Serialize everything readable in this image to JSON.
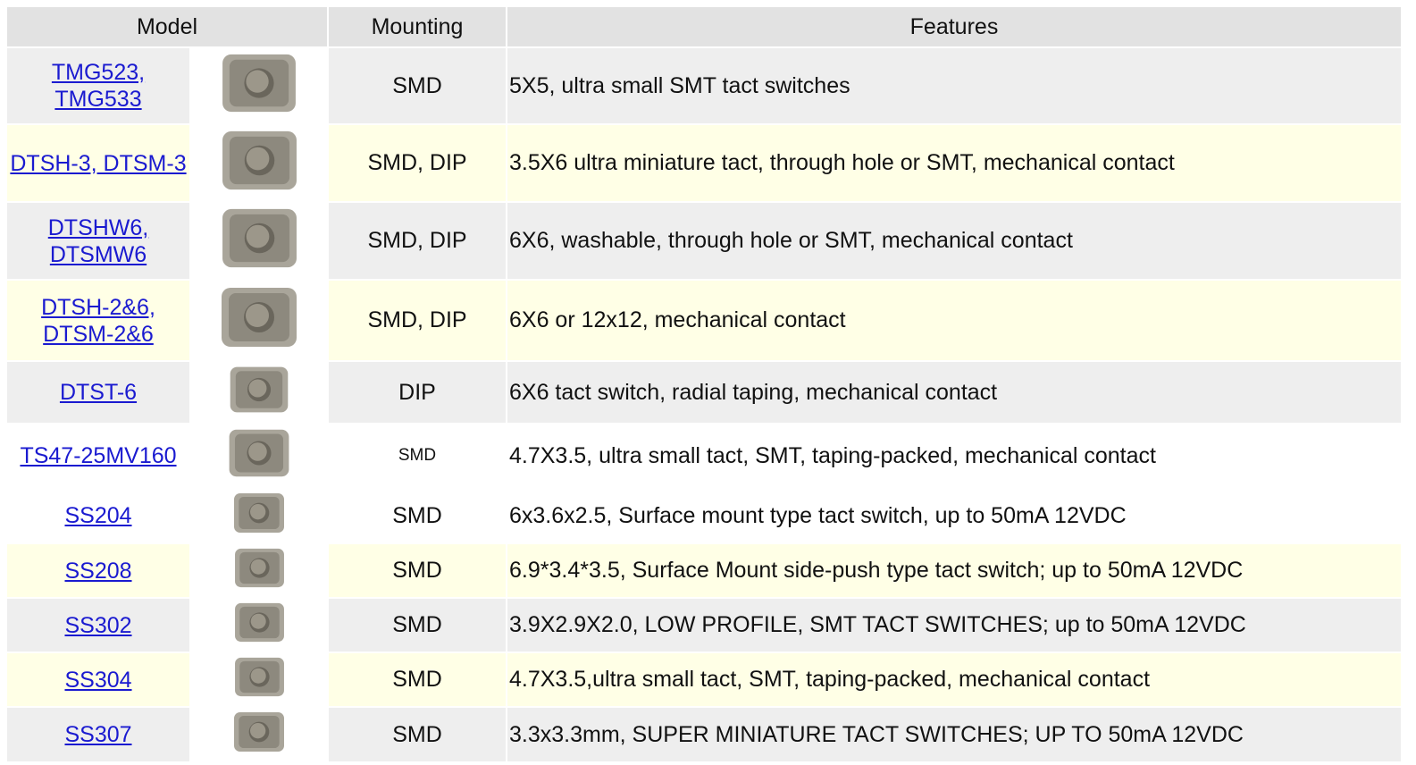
{
  "table": {
    "headers": [
      "Model",
      "Mounting",
      "Features"
    ],
    "rows": [
      [
        "TMG523, TMG533",
        "SMD",
        "5X5, ultra small SMT tact switches"
      ],
      [
        "DTSH-3, DTSM-3",
        "SMD, DIP",
        "3.5X6 ultra miniature tact, through hole or SMT, mechanical contact"
      ],
      [
        "DTSHW6, DTSMW6",
        "SMD, DIP",
        "6X6, washable, through hole or SMT, mechanical contact"
      ],
      [
        "DTSH-2&6, DTSM-2&6",
        "SMD, DIP",
        "6X6 or 12x12, mechanical contact"
      ],
      [
        "DTST-6",
        "DIP",
        "6X6 tact switch, radial taping, mechanical contact"
      ],
      [
        "TS47-25MV160",
        "SMD",
        "4.7X3.5, ultra small tact, SMT, taping-packed, mechanical contact"
      ],
      [
        "SS204",
        "SMD",
        "6x3.6x2.5, Surface mount type tact switch, up to 50mA 12VDC"
      ],
      [
        "SS208",
        "SMD",
        "6.9*3.4*3.5, Surface Mount side-push type tact switch; up to 50mA 12VDC"
      ],
      [
        "SS302",
        "SMD",
        "3.9X2.9X2.0, LOW PROFILE, SMT TACT SWITCHES; up to 50mA 12VDC"
      ],
      [
        "SS304",
        "SMD",
        "4.7X3.5,ultra small tact, SMT, taping-packed, mechanical contact"
      ],
      [
        "SS307",
        "SMD",
        "3.3x3.3mm, SUPER MINIATURE TACT SWITCHES; UP TO 50mA 12VDC"
      ]
    ]
  }
}
